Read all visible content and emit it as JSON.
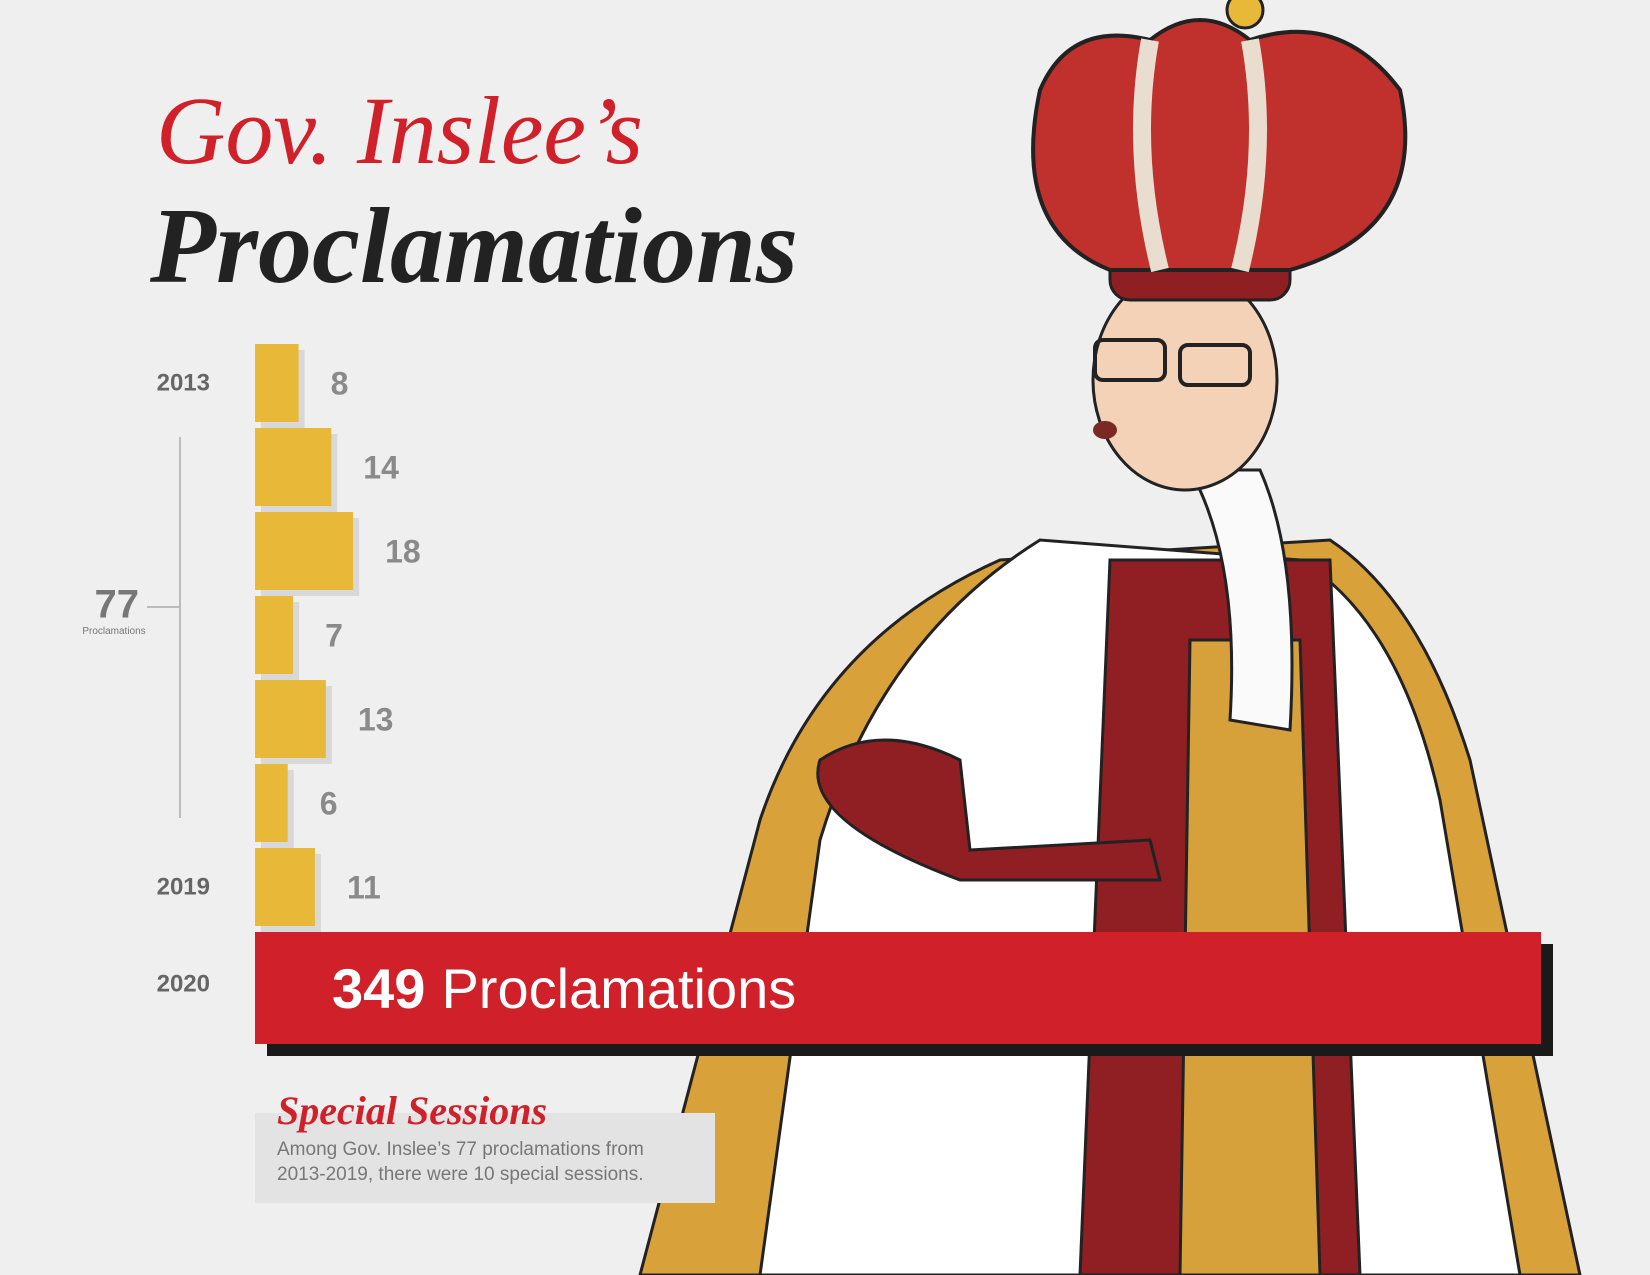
{
  "chart_data": {
    "type": "bar",
    "title": "Gov. Inslee’s",
    "subtitle": "Proclamations",
    "categories": [
      "2013",
      null,
      null,
      null,
      null,
      null,
      "2019"
    ],
    "values": [
      8,
      14,
      18,
      7,
      13,
      6,
      11
    ],
    "color": "#e8b838",
    "total": {
      "value": 77,
      "label": "Proclamations"
    },
    "highlight": {
      "category": "2020",
      "value": 349,
      "label": "Proclamations",
      "color": "#d0202a"
    },
    "note": {
      "title": "Special Sessions",
      "lines": [
        "Among Gov. Inslee’s 77 proclamations from",
        "2013-2019, there were 10 special sessions."
      ]
    }
  }
}
